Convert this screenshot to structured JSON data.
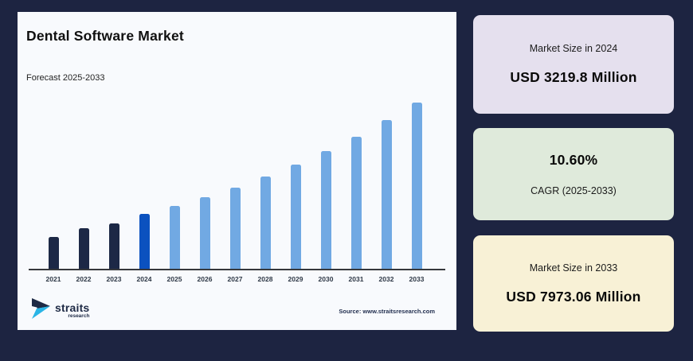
{
  "page": {
    "background": "#1d2441"
  },
  "chart_panel": {
    "title": "Dental Software Market",
    "subtitle": "Forecast 2025-2033",
    "source": "Source: www.straitsresearch.com",
    "logo": {
      "name": "straits",
      "tagline": "research"
    }
  },
  "chart_data": {
    "type": "bar",
    "title": "Dental Software Market",
    "subtitle": "Forecast 2025-2033",
    "unit": "USD Million",
    "categories": [
      "2021",
      "2022",
      "2023",
      "2024",
      "2025",
      "2026",
      "2027",
      "2028",
      "2029",
      "2030",
      "2031",
      "2032",
      "2033"
    ],
    "values": [
      2260,
      2610,
      2840,
      3219.8,
      3561.1,
      3938.6,
      4356.1,
      4817.8,
      5328.5,
      5893.3,
      6518.0,
      7208.9,
      7973.06
    ],
    "ylim": [
      900,
      8000
    ],
    "grid": false,
    "legend": false,
    "xlabel": "",
    "ylabel": "",
    "bar_colors": [
      "#1c2846",
      "#1c2846",
      "#1c2846",
      "#0b51bf",
      "#71a9e3",
      "#71a9e3",
      "#71a9e3",
      "#71a9e3",
      "#71a9e3",
      "#71a9e3",
      "#71a9e3",
      "#71a9e3",
      "#71a9e3"
    ]
  },
  "cards": [
    {
      "label": "Market Size in 2024",
      "value": "USD 3219.8 Million",
      "background": "#e5e0ee"
    },
    {
      "label": "CAGR (2025-2033)",
      "value": "10.60%",
      "background": "#dfeadb"
    },
    {
      "label": "Market Size in 2033",
      "value": "USD 7973.06 Million",
      "background": "#f8f1d6"
    }
  ],
  "colors": {
    "panel_background": "#f8fafd",
    "historical_bar": "#1c2846",
    "base_year_bar": "#0b51bf",
    "forecast_bar": "#71a9e3",
    "axis_line": "#36383c",
    "logo_navy": "#1e2a45",
    "logo_cyan": "#2ab5e6"
  }
}
